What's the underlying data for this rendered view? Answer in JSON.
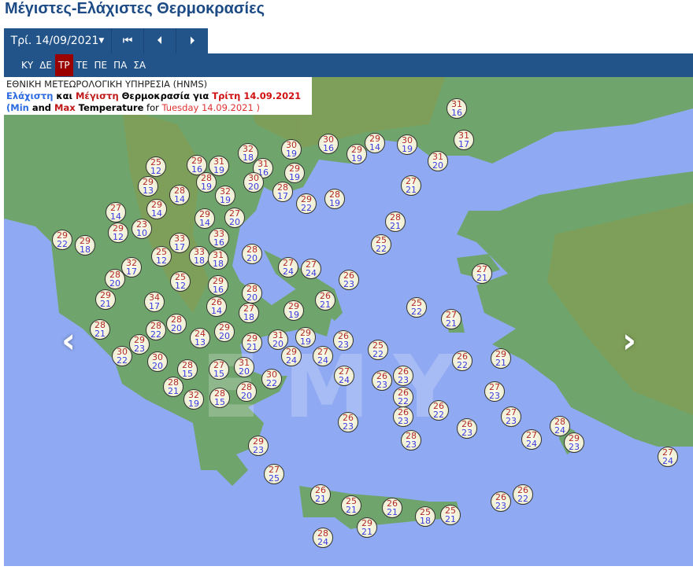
{
  "title": "Μέγιστες-Ελάχιστες Θερμοκρασίες",
  "toolbar": {
    "date": "Τρί. 14/09/2021",
    "first_icon": "skip-to-first-icon",
    "prev_icon": "step-back-icon",
    "next_icon": "step-forward-icon"
  },
  "days": [
    {
      "label": "ΚΥ"
    },
    {
      "label": "ΔΕ"
    },
    {
      "label": "ΤΡ",
      "active": true
    },
    {
      "label": "ΤΕ"
    },
    {
      "label": "ΠΕ"
    },
    {
      "label": "ΠΑ"
    },
    {
      "label": "ΣΑ"
    }
  ],
  "info": {
    "line1": "ΕΘΝΙΚΗ ΜΕΤΕΩΡΟΛΟΓΙΚΗ ΥΠΗΡΕΣΙΑ (HNMS)",
    "min_gr": "Ελάχιστη",
    "and_gr": " και ",
    "max_gr": "Μέγιστη",
    "temp_gr": " Θερμοκρασία για ",
    "date_gr": "Τρίτη 14.09.2021",
    "open": "(",
    "min_en": "Min",
    "and_en": " and ",
    "max_en": "Max",
    "temp_en": " Temperature",
    "for_en": " for ",
    "date_en": "Tuesday 14.09.2021 )"
  },
  "watermark": "EMY",
  "colors": {
    "max": "#b42a2a",
    "min": "#3a3ae0",
    "sea": "#8fa9f2",
    "header": "#22548a",
    "active_day": "#9a0000"
  },
  "stations": [
    [
      31,
      16
    ],
    [
      31,
      17
    ],
    [
      32,
      18
    ],
    [
      30,
      19
    ],
    [
      30,
      16
    ],
    [
      29,
      14
    ],
    [
      29,
      19
    ],
    [
      30,
      19
    ],
    [
      31,
      20
    ],
    [
      31,
      16
    ],
    [
      29,
      19
    ],
    [
      30,
      20
    ],
    [
      28,
      17
    ],
    [
      29,
      22
    ],
    [
      28,
      19
    ],
    [
      27,
      21
    ],
    [
      28,
      21
    ],
    [
      25,
      22
    ],
    [
      25,
      12
    ],
    [
      29,
      16
    ],
    [
      31,
      19
    ],
    [
      28,
      19
    ],
    [
      29,
      13
    ],
    [
      28,
      14
    ],
    [
      32,
      19
    ],
    [
      27,
      14
    ],
    [
      29,
      14
    ],
    [
      29,
      14
    ],
    [
      27,
      20
    ],
    [
      29,
      12
    ],
    [
      23,
      10
    ],
    [
      29,
      22
    ],
    [
      29,
      18
    ],
    [
      33,
      17
    ],
    [
      33,
      16
    ],
    [
      25,
      12
    ],
    [
      33,
      18
    ],
    [
      31,
      18
    ],
    [
      28,
      20
    ],
    [
      32,
      17
    ],
    [
      27,
      24
    ],
    [
      27,
      24
    ],
    [
      28,
      20
    ],
    [
      25,
      12
    ],
    [
      29,
      16
    ],
    [
      26,
      23
    ],
    [
      27,
      21
    ],
    [
      29,
      21
    ],
    [
      34,
      17
    ],
    [
      28,
      20
    ],
    [
      26,
      14
    ],
    [
      27,
      18
    ],
    [
      26,
      21
    ],
    [
      29,
      19
    ],
    [
      25,
      22
    ],
    [
      27,
      21
    ],
    [
      28,
      21
    ],
    [
      28,
      22
    ],
    [
      28,
      20
    ],
    [
      29,
      20
    ],
    [
      24,
      13
    ],
    [
      29,
      21
    ],
    [
      31,
      20
    ],
    [
      29,
      19
    ],
    [
      26,
      23
    ],
    [
      25,
      22
    ],
    [
      29,
      23
    ],
    [
      30,
      22
    ],
    [
      29,
      24
    ],
    [
      27,
      24
    ],
    [
      30,
      20
    ],
    [
      31,
      20
    ],
    [
      28,
      15
    ],
    [
      27,
      15
    ],
    [
      30,
      22
    ],
    [
      27,
      24
    ],
    [
      26,
      23
    ],
    [
      26,
      23
    ],
    [
      26,
      22
    ],
    [
      29,
      21
    ],
    [
      28,
      21
    ],
    [
      28,
      20
    ],
    [
      32,
      19
    ],
    [
      28,
      15
    ],
    [
      26,
      22
    ],
    [
      27,
      23
    ],
    [
      26,
      23
    ],
    [
      26,
      22
    ],
    [
      26,
      23
    ],
    [
      27,
      23
    ],
    [
      26,
      23
    ],
    [
      28,
      23
    ],
    [
      27,
      24
    ],
    [
      28,
      24
    ],
    [
      29,
      23
    ],
    [
      29,
      23
    ],
    [
      27,
      24
    ],
    [
      27,
      25
    ],
    [
      26,
      21
    ],
    [
      25,
      21
    ],
    [
      26,
      21
    ],
    [
      25,
      18
    ],
    [
      25,
      21
    ],
    [
      26,
      23
    ],
    [
      26,
      22
    ],
    [
      29,
      21
    ],
    [
      28,
      24
    ]
  ]
}
